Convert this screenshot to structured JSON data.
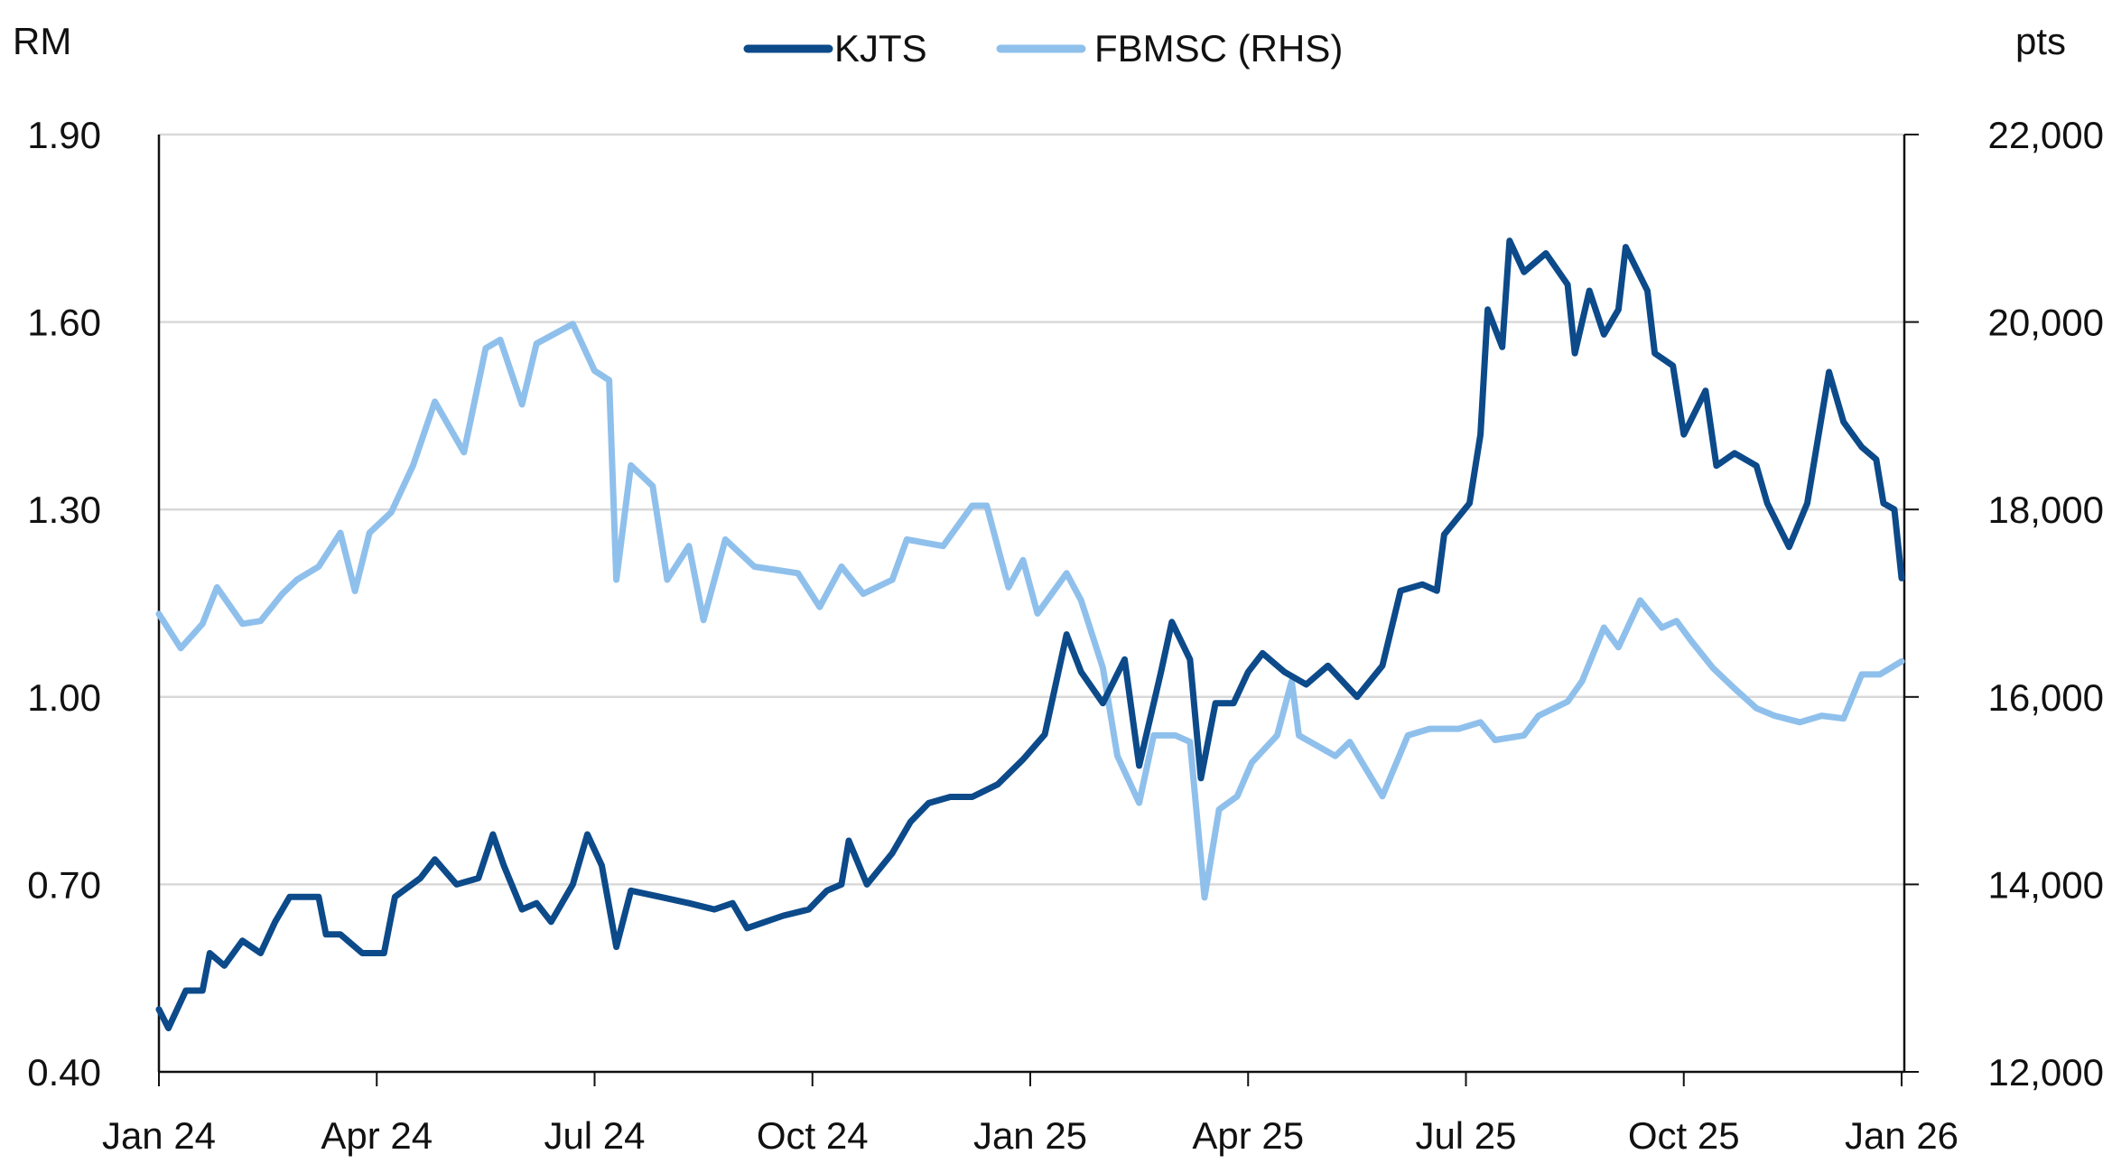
{
  "chart_data": {
    "type": "line",
    "title": "",
    "left_axis_unit": "RM",
    "right_axis_unit": "pts",
    "x_unit": "months since Jan 2024",
    "x_ticks": [
      {
        "m": 0,
        "label": "Jan 24"
      },
      {
        "m": 3,
        "label": "Apr 24"
      },
      {
        "m": 6,
        "label": "Jul 24"
      },
      {
        "m": 9,
        "label": "Oct 24"
      },
      {
        "m": 12,
        "label": "Jan 25"
      },
      {
        "m": 15,
        "label": "Apr 25"
      },
      {
        "m": 18,
        "label": "Jul 25"
      },
      {
        "m": 21,
        "label": "Oct 25"
      },
      {
        "m": 24,
        "label": "Jan 26"
      }
    ],
    "xlim": [
      0,
      24
    ],
    "ylim_left": [
      0.4,
      1.9
    ],
    "left_ticks": [
      "0.40",
      "0.70",
      "1.00",
      "1.30",
      "1.60",
      "1.90"
    ],
    "ylim_right": [
      12000,
      22000
    ],
    "right_ticks": [
      "12,000",
      "14,000",
      "16,000",
      "18,000",
      "20,000",
      "22,000"
    ],
    "grid": true,
    "legend_position": "top-center",
    "series": [
      {
        "name": "KJTS",
        "axis": "left",
        "color": "#0c4a8a",
        "points": [
          [
            0,
            0.5
          ],
          [
            0.13,
            0.47
          ],
          [
            0.37,
            0.53
          ],
          [
            0.6,
            0.53
          ],
          [
            0.7,
            0.59
          ],
          [
            0.9,
            0.57
          ],
          [
            1.15,
            0.61
          ],
          [
            1.4,
            0.59
          ],
          [
            1.6,
            0.64
          ],
          [
            1.8,
            0.68
          ],
          [
            2.2,
            0.68
          ],
          [
            2.3,
            0.62
          ],
          [
            2.5,
            0.62
          ],
          [
            2.8,
            0.59
          ],
          [
            3.1,
            0.59
          ],
          [
            3.25,
            0.68
          ],
          [
            3.6,
            0.71
          ],
          [
            3.8,
            0.74
          ],
          [
            4.1,
            0.7
          ],
          [
            4.4,
            0.71
          ],
          [
            4.6,
            0.78
          ],
          [
            4.75,
            0.73
          ],
          [
            5.0,
            0.66
          ],
          [
            5.2,
            0.67
          ],
          [
            5.4,
            0.64
          ],
          [
            5.7,
            0.7
          ],
          [
            5.9,
            0.78
          ],
          [
            6.1,
            0.73
          ],
          [
            6.3,
            0.6
          ],
          [
            6.5,
            0.69
          ],
          [
            6.9,
            0.68
          ],
          [
            7.3,
            0.67
          ],
          [
            7.65,
            0.66
          ],
          [
            7.9,
            0.67
          ],
          [
            8.1,
            0.63
          ],
          [
            8.6,
            0.65
          ],
          [
            8.95,
            0.66
          ],
          [
            9.2,
            0.69
          ],
          [
            9.4,
            0.7
          ],
          [
            9.5,
            0.77
          ],
          [
            9.75,
            0.7
          ],
          [
            10.1,
            0.75
          ],
          [
            10.35,
            0.8
          ],
          [
            10.6,
            0.83
          ],
          [
            10.9,
            0.84
          ],
          [
            11.2,
            0.84
          ],
          [
            11.55,
            0.86
          ],
          [
            11.9,
            0.9
          ],
          [
            12.2,
            0.94
          ],
          [
            12.5,
            1.1
          ],
          [
            12.7,
            1.04
          ],
          [
            13.0,
            0.99
          ],
          [
            13.3,
            1.06
          ],
          [
            13.5,
            0.89
          ],
          [
            13.8,
            1.04
          ],
          [
            13.95,
            1.12
          ],
          [
            14.2,
            1.06
          ],
          [
            14.35,
            0.87
          ],
          [
            14.55,
            0.99
          ],
          [
            14.8,
            0.99
          ],
          [
            15.0,
            1.04
          ],
          [
            15.2,
            1.07
          ],
          [
            15.5,
            1.04
          ],
          [
            15.8,
            1.02
          ],
          [
            16.1,
            1.05
          ],
          [
            16.5,
            1.0
          ],
          [
            16.85,
            1.05
          ],
          [
            17.1,
            1.17
          ],
          [
            17.4,
            1.18
          ],
          [
            17.6,
            1.17
          ],
          [
            17.7,
            1.26
          ],
          [
            18.05,
            1.31
          ],
          [
            18.2,
            1.42
          ],
          [
            18.3,
            1.62
          ],
          [
            18.5,
            1.56
          ],
          [
            18.6,
            1.73
          ],
          [
            18.8,
            1.68
          ],
          [
            19.1,
            1.71
          ],
          [
            19.4,
            1.66
          ],
          [
            19.5,
            1.55
          ],
          [
            19.7,
            1.65
          ],
          [
            19.9,
            1.58
          ],
          [
            20.1,
            1.62
          ],
          [
            20.2,
            1.72
          ],
          [
            20.5,
            1.65
          ],
          [
            20.6,
            1.55
          ],
          [
            20.85,
            1.53
          ],
          [
            21.0,
            1.42
          ],
          [
            21.3,
            1.49
          ],
          [
            21.45,
            1.37
          ],
          [
            21.7,
            1.39
          ],
          [
            22.0,
            1.37
          ],
          [
            22.15,
            1.31
          ],
          [
            22.45,
            1.24
          ],
          [
            22.7,
            1.31
          ],
          [
            23.0,
            1.52
          ],
          [
            23.2,
            1.44
          ],
          [
            23.45,
            1.4
          ],
          [
            23.65,
            1.38
          ],
          [
            23.75,
            1.31
          ],
          [
            23.9,
            1.3
          ],
          [
            24.0,
            1.19
          ]
        ]
      },
      {
        "name": "FBMSC (RHS)",
        "axis": "right",
        "color": "#8fc0ec",
        "points": [
          [
            0,
            16885
          ],
          [
            0.3,
            16520
          ],
          [
            0.6,
            16780
          ],
          [
            0.8,
            17170
          ],
          [
            1.15,
            16780
          ],
          [
            1.4,
            16810
          ],
          [
            1.7,
            17100
          ],
          [
            1.9,
            17250
          ],
          [
            2.2,
            17390
          ],
          [
            2.5,
            17750
          ],
          [
            2.7,
            17130
          ],
          [
            2.9,
            17750
          ],
          [
            3.2,
            17970
          ],
          [
            3.5,
            18470
          ],
          [
            3.8,
            19150
          ],
          [
            4.2,
            18610
          ],
          [
            4.5,
            19720
          ],
          [
            4.7,
            19810
          ],
          [
            5.0,
            19120
          ],
          [
            5.2,
            19770
          ],
          [
            5.7,
            19980
          ],
          [
            6.0,
            19480
          ],
          [
            6.2,
            19380
          ],
          [
            6.3,
            17250
          ],
          [
            6.5,
            18470
          ],
          [
            6.8,
            18250
          ],
          [
            7.0,
            17250
          ],
          [
            7.3,
            17610
          ],
          [
            7.5,
            16820
          ],
          [
            7.8,
            17680
          ],
          [
            8.2,
            17390
          ],
          [
            8.8,
            17320
          ],
          [
            9.1,
            16960
          ],
          [
            9.4,
            17390
          ],
          [
            9.7,
            17100
          ],
          [
            10.1,
            17250
          ],
          [
            10.3,
            17680
          ],
          [
            10.8,
            17610
          ],
          [
            11.2,
            18040
          ],
          [
            11.4,
            18040
          ],
          [
            11.7,
            17170
          ],
          [
            11.9,
            17460
          ],
          [
            12.1,
            16890
          ],
          [
            12.5,
            17320
          ],
          [
            12.7,
            17030
          ],
          [
            13.0,
            16310
          ],
          [
            13.2,
            15370
          ],
          [
            13.5,
            14870
          ],
          [
            13.7,
            15590
          ],
          [
            14.0,
            15590
          ],
          [
            14.2,
            15520
          ],
          [
            14.4,
            13860
          ],
          [
            14.6,
            14800
          ],
          [
            14.85,
            14940
          ],
          [
            15.05,
            15300
          ],
          [
            15.4,
            15590
          ],
          [
            15.6,
            16170
          ],
          [
            15.7,
            15590
          ],
          [
            16.2,
            15370
          ],
          [
            16.4,
            15520
          ],
          [
            16.85,
            14940
          ],
          [
            17.2,
            15590
          ],
          [
            17.5,
            15660
          ],
          [
            17.9,
            15660
          ],
          [
            18.2,
            15730
          ],
          [
            18.4,
            15540
          ],
          [
            18.8,
            15590
          ],
          [
            19.0,
            15800
          ],
          [
            19.4,
            15950
          ],
          [
            19.6,
            16170
          ],
          [
            19.9,
            16740
          ],
          [
            20.1,
            16530
          ],
          [
            20.4,
            17030
          ],
          [
            20.7,
            16740
          ],
          [
            20.9,
            16810
          ],
          [
            21.1,
            16600
          ],
          [
            21.4,
            16310
          ],
          [
            21.7,
            16090
          ],
          [
            22.0,
            15880
          ],
          [
            22.25,
            15800
          ],
          [
            22.6,
            15730
          ],
          [
            22.9,
            15800
          ],
          [
            23.2,
            15770
          ],
          [
            23.45,
            16240
          ],
          [
            23.7,
            16240
          ],
          [
            24.0,
            16380
          ]
        ]
      }
    ]
  }
}
